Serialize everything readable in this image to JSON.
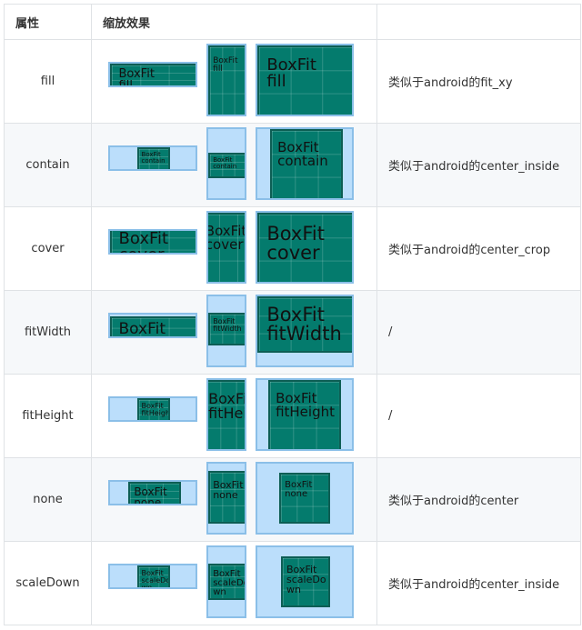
{
  "header": {
    "col1": "属性",
    "col2": "缩放效果",
    "col3": ""
  },
  "rows": [
    {
      "name": "fill",
      "label": "BoxFit\nfill",
      "description": "类似于android的fit_xy"
    },
    {
      "name": "contain",
      "label": "BoxFit\ncontain",
      "description": "类似于android的center_inside"
    },
    {
      "name": "cover",
      "label": "BoxFit\ncover",
      "description": "类似于android的center_crop"
    },
    {
      "name": "fitWidth",
      "label": "BoxFit\nfitWidth",
      "description": "/"
    },
    {
      "name": "fitHeight",
      "label": "BoxFit\nfitHeight",
      "description": "/"
    },
    {
      "name": "none",
      "label": "BoxFit\nnone",
      "description": "类似于android的center"
    },
    {
      "name": "scaleDown",
      "label": "BoxFit\nscaleDo\nwn",
      "description": "类似于android的center_inside"
    }
  ],
  "colors": {
    "container": "#bbdefb",
    "image": "#047b6d",
    "border": "#dfe2e5"
  }
}
